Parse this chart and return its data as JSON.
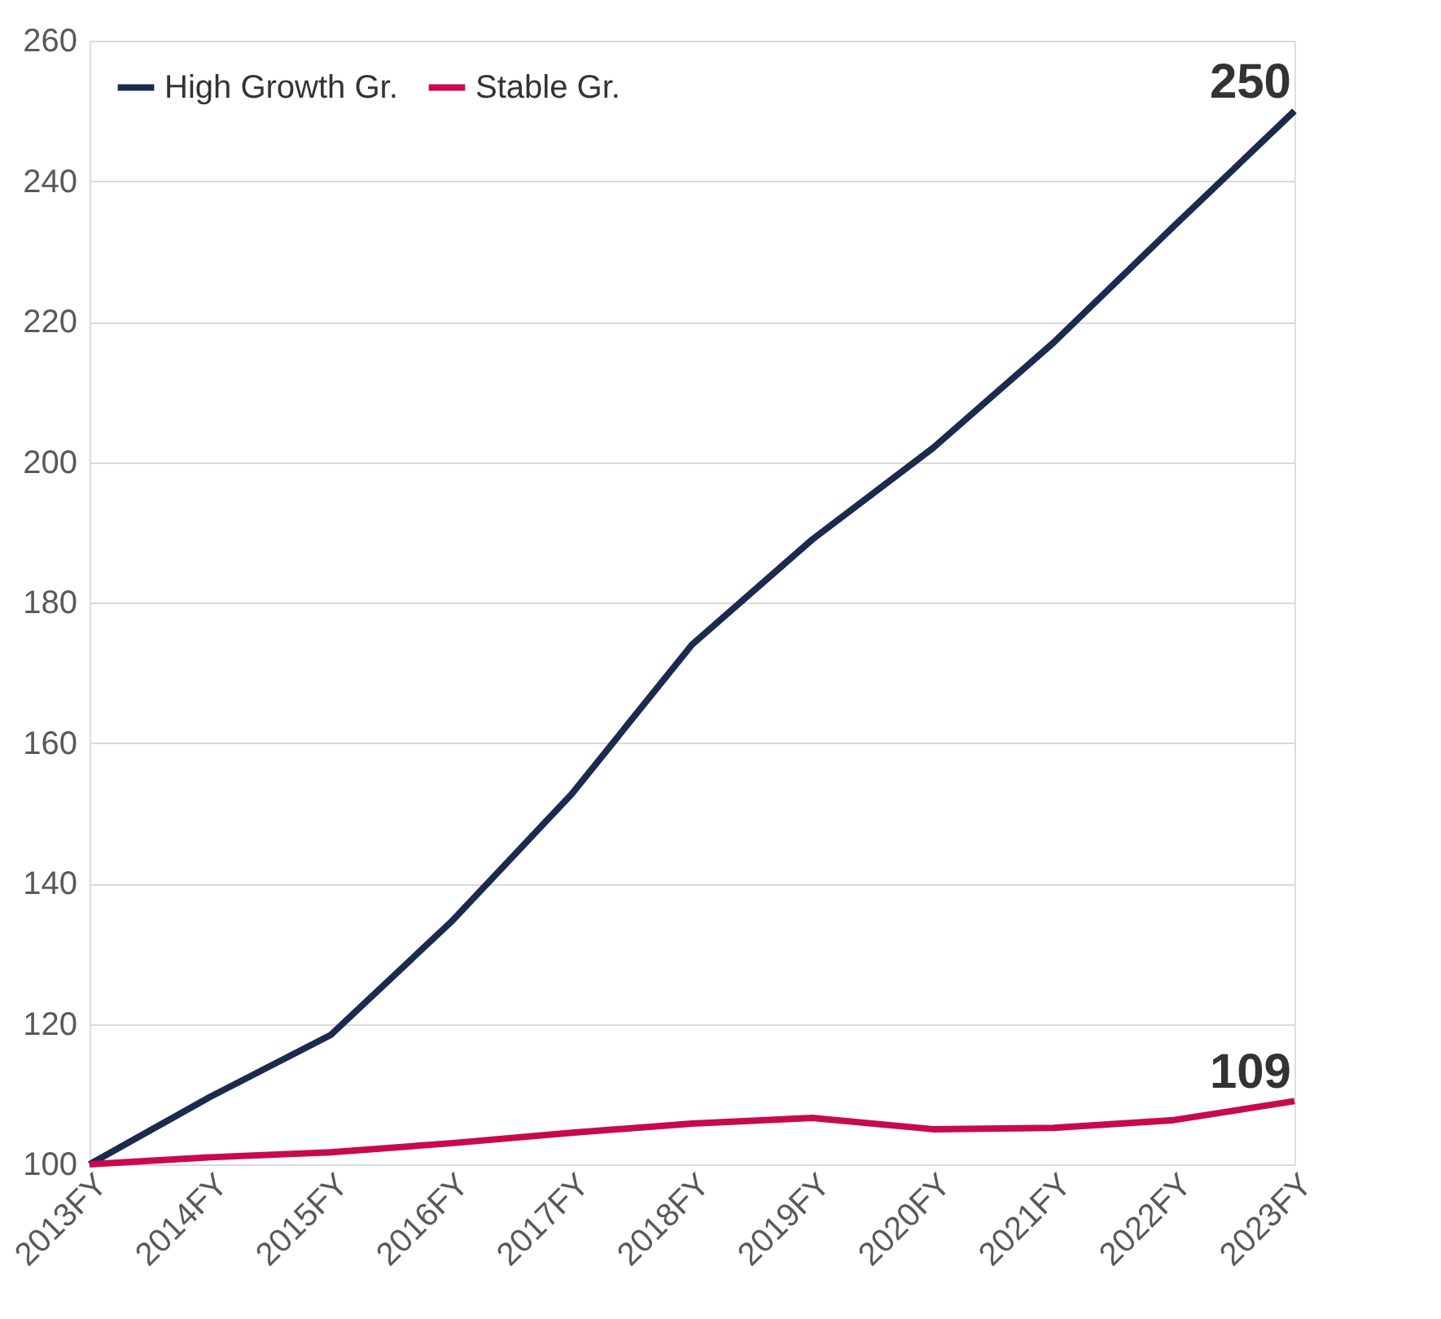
{
  "chart_data": {
    "type": "line",
    "categories": [
      "2013FY",
      "2014FY",
      "2015FY",
      "2016FY",
      "2017FY",
      "2018FY",
      "2019FY",
      "2020FY",
      "2021FY",
      "2022FY",
      "2023FY"
    ],
    "series": [
      {
        "name": "High Growth Gr.",
        "color": "#1b2a4e",
        "values": [
          100,
          109.6,
          118.4,
          134.5,
          152.7,
          174,
          189,
          202,
          217,
          233.6,
          250
        ]
      },
      {
        "name": "Stable Gr.",
        "color": "#c8094f",
        "values": [
          100,
          101,
          101.7,
          103,
          104.5,
          105.8,
          106.6,
          105,
          105.2,
          106.3,
          109
        ]
      }
    ],
    "ylim": [
      100,
      260
    ],
    "yticks": [
      100,
      120,
      140,
      160,
      180,
      200,
      220,
      240,
      260
    ],
    "grid": "y",
    "legend": "top left",
    "marker": "none",
    "line_style": "solid",
    "annotations": [
      "250",
      "109"
    ]
  }
}
